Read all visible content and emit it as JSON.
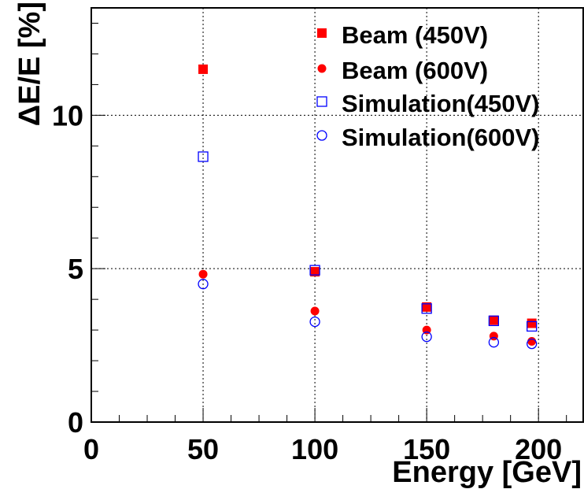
{
  "chart_data": {
    "type": "scatter",
    "xlabel": "Energy [GeV]",
    "ylabel": "ΔE/E [%]",
    "xlim": [
      0,
      220
    ],
    "ylim": [
      0,
      13.5
    ],
    "x_ticks": [
      0,
      50,
      100,
      150,
      200
    ],
    "y_ticks": [
      0,
      5,
      10
    ],
    "grid": true,
    "legend_position": "top-right",
    "series": [
      {
        "name": "Beam (450V)",
        "marker": "filled-square",
        "color": "#ff0000",
        "points": [
          {
            "x": 50,
            "y": 11.5
          },
          {
            "x": 100,
            "y": 4.9
          },
          {
            "x": 150,
            "y": 3.75
          },
          {
            "x": 180,
            "y": 3.32
          },
          {
            "x": 197,
            "y": 3.22
          }
        ]
      },
      {
        "name": "Beam (600V)",
        "marker": "filled-circle",
        "color": "#ff0000",
        "points": [
          {
            "x": 50,
            "y": 4.82
          },
          {
            "x": 100,
            "y": 3.62
          },
          {
            "x": 150,
            "y": 3.0
          },
          {
            "x": 180,
            "y": 2.8
          },
          {
            "x": 197,
            "y": 2.63
          }
        ]
      },
      {
        "name": "Simulation(450V)",
        "marker": "open-square",
        "color": "#0000ff",
        "points": [
          {
            "x": 50,
            "y": 8.65
          },
          {
            "x": 100,
            "y": 4.95
          },
          {
            "x": 150,
            "y": 3.7
          },
          {
            "x": 180,
            "y": 3.3
          },
          {
            "x": 197,
            "y": 3.12
          }
        ]
      },
      {
        "name": "Simulation(600V)",
        "marker": "open-circle",
        "color": "#0000ff",
        "points": [
          {
            "x": 50,
            "y": 4.5
          },
          {
            "x": 100,
            "y": 3.27
          },
          {
            "x": 150,
            "y": 2.78
          },
          {
            "x": 180,
            "y": 2.6
          },
          {
            "x": 197,
            "y": 2.55
          }
        ]
      }
    ]
  }
}
